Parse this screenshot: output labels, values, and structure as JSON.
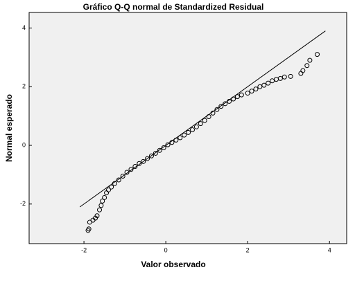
{
  "chart_data": {
    "type": "scatter",
    "title": "Gráfico Q-Q normal de Standardized Residual",
    "x_label": "Valor observado",
    "y_label": "Normal esperado",
    "xlim": [
      -3.34,
      4.42
    ],
    "ylim": [
      -3.35,
      4.53
    ],
    "xticks": [
      -2,
      0,
      2,
      4
    ],
    "yticks": [
      -2,
      0,
      2,
      4
    ],
    "color": "#000000",
    "reference_line": {
      "x": [
        -2.1,
        3.9
      ],
      "y": [
        -2.1,
        3.9
      ]
    },
    "x": [
      -1.9,
      -1.88,
      -1.86,
      -1.78,
      -1.72,
      -1.68,
      -1.62,
      -1.58,
      -1.55,
      -1.5,
      -1.45,
      -1.4,
      -1.33,
      -1.25,
      -1.15,
      -1.05,
      -0.95,
      -0.85,
      -0.75,
      -0.65,
      -0.55,
      -0.45,
      -0.35,
      -0.25,
      -0.15,
      -0.05,
      0.05,
      0.15,
      0.25,
      0.35,
      0.45,
      0.55,
      0.65,
      0.75,
      0.85,
      0.95,
      1.05,
      1.15,
      1.25,
      1.35,
      1.45,
      1.55,
      1.65,
      1.75,
      1.85,
      2.0,
      2.1,
      2.2,
      2.3,
      2.4,
      2.5,
      2.6,
      2.7,
      2.8,
      2.9,
      3.05,
      3.3,
      3.35,
      3.45,
      3.52,
      3.7
    ],
    "values": [
      -2.9,
      -2.85,
      -2.62,
      -2.55,
      -2.48,
      -2.4,
      -2.2,
      -2.05,
      -1.9,
      -1.78,
      -1.62,
      -1.52,
      -1.42,
      -1.3,
      -1.18,
      -1.05,
      -0.92,
      -0.82,
      -0.72,
      -0.62,
      -0.55,
      -0.45,
      -0.36,
      -0.27,
      -0.17,
      -0.08,
      0.02,
      0.1,
      0.18,
      0.26,
      0.35,
      0.44,
      0.53,
      0.63,
      0.74,
      0.85,
      0.98,
      1.1,
      1.22,
      1.33,
      1.42,
      1.5,
      1.58,
      1.66,
      1.72,
      1.78,
      1.85,
      1.92,
      2.0,
      2.05,
      2.12,
      2.2,
      2.25,
      2.28,
      2.33,
      2.35,
      2.45,
      2.55,
      2.72,
      2.9,
      3.1
    ]
  }
}
